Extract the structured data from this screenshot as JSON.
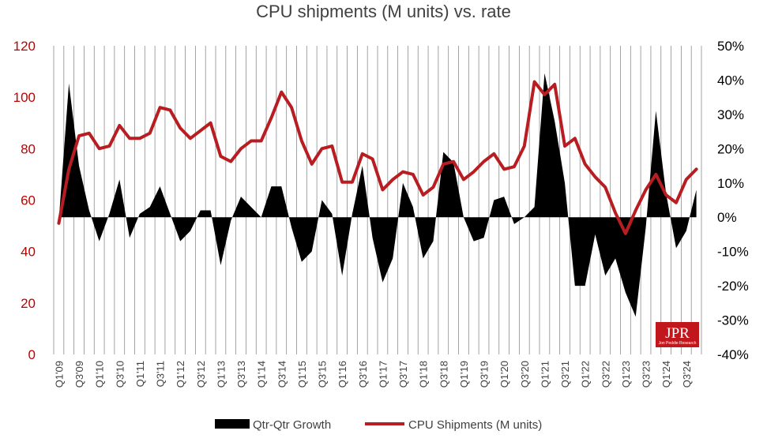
{
  "colors": {
    "shipments_line": "#b81d22",
    "growth_area": "#000000",
    "grid": "#8c8c8c",
    "left_axis_text": "#c00000",
    "right_axis_text": "#000000",
    "logo_bg": "#c0161c"
  },
  "logo": {
    "main": "JPR",
    "sub": "Jon Peddie Research"
  },
  "chart_data": {
    "type": "line",
    "title": "CPU shipments (M units) vs. rate",
    "legend_position": "bottom",
    "grid": {
      "vertical": true,
      "horizontal": false
    },
    "x": [
      "Q1'09",
      "Q2'09",
      "Q3'09",
      "Q4'09",
      "Q1'10",
      "Q2'10",
      "Q3'10",
      "Q4'10",
      "Q1'11",
      "Q2'11",
      "Q3'11",
      "Q4'11",
      "Q1'12",
      "Q2'12",
      "Q3'12",
      "Q4'12",
      "Q1'13",
      "Q2'13",
      "Q3'13",
      "Q4'13",
      "Q1'14",
      "Q2'14",
      "Q3'14",
      "Q4'14",
      "Q1'15",
      "Q2'15",
      "Q3'15",
      "Q4'15",
      "Q1'16",
      "Q2'16",
      "Q3'16",
      "Q4'16",
      "Q1'17",
      "Q2'17",
      "Q3'17",
      "Q4'17",
      "Q1'18",
      "Q2'18",
      "Q3'18",
      "Q4'18",
      "Q1'19",
      "Q2'19",
      "Q3'19",
      "Q4'19",
      "Q1'20",
      "Q2'20",
      "Q3'20",
      "Q4'20",
      "Q1'21",
      "Q2'21",
      "Q3'21",
      "Q4'21",
      "Q1'22",
      "Q2'22",
      "Q3'22",
      "Q4'22",
      "Q1'23",
      "Q2'23",
      "Q3'23",
      "Q4'23",
      "Q1'24",
      "Q2'24",
      "Q3'24",
      "Q4'24"
    ],
    "x_tick_labels": [
      "Q1'09",
      "Q3'09",
      "Q1'10",
      "Q3'10",
      "Q1'11",
      "Q3'11",
      "Q1'12",
      "Q3'12",
      "Q1'13",
      "Q3'13",
      "Q1'14",
      "Q3'14",
      "Q1'15",
      "Q3'15",
      "Q1'16",
      "Q3'16",
      "Q1'17",
      "Q3'17",
      "Q1'18",
      "Q3'18",
      "Q1'19",
      "Q3'19",
      "Q1'20",
      "Q3'20",
      "Q1'21",
      "Q3'21",
      "Q1'22",
      "Q3'22",
      "Q1'23",
      "Q3'23",
      "Q1'24",
      "Q3'24"
    ],
    "y_left": {
      "min": 0,
      "max": 120,
      "ticks": [
        0,
        20,
        40,
        60,
        80,
        100,
        120
      ]
    },
    "y_right": {
      "min": -40,
      "max": 50,
      "ticks": [
        -40,
        -30,
        -20,
        -10,
        0,
        10,
        20,
        30,
        40,
        50
      ],
      "tick_labels": [
        "-40%",
        "-30%",
        "-20%",
        "-10%",
        "0%",
        "10%",
        "20%",
        "30%",
        "40%",
        "50%"
      ]
    },
    "series": [
      {
        "name": "Qtr-Qtr Growth",
        "type": "area",
        "axis": "right",
        "color": "#000000",
        "values": [
          -1,
          39,
          15,
          2,
          -7,
          1,
          11,
          -6,
          1,
          3,
          9,
          1,
          -7,
          -4,
          2,
          2,
          -14,
          -1,
          6,
          3,
          0,
          9,
          9,
          -3,
          -13,
          -10,
          5,
          1,
          -17,
          1,
          15,
          -6,
          -19,
          -12,
          10,
          3,
          -12,
          -7,
          19,
          16,
          0,
          -7,
          -6,
          5,
          6,
          -2,
          0,
          3,
          42,
          28,
          10,
          -20,
          -20,
          -5,
          -17,
          -12,
          -22,
          -29,
          -3,
          31,
          7,
          -9,
          -4,
          8
        ]
      },
      {
        "name": "CPU Shipments (M units)",
        "type": "line",
        "axis": "left",
        "color": "#b81d22",
        "values": [
          51,
          72,
          85,
          86,
          80,
          81,
          89,
          84,
          84,
          86,
          96,
          95,
          88,
          84,
          87,
          90,
          77,
          75,
          80,
          83,
          83,
          92,
          102,
          96,
          83,
          74,
          80,
          81,
          67,
          67,
          78,
          76,
          64,
          68,
          71,
          70,
          62,
          65,
          74,
          75,
          68,
          71,
          75,
          78,
          72,
          73,
          81,
          106,
          101,
          105,
          81,
          84,
          74,
          69,
          65,
          55,
          47,
          56,
          64,
          70,
          62,
          59,
          68,
          72
        ]
      }
    ]
  }
}
